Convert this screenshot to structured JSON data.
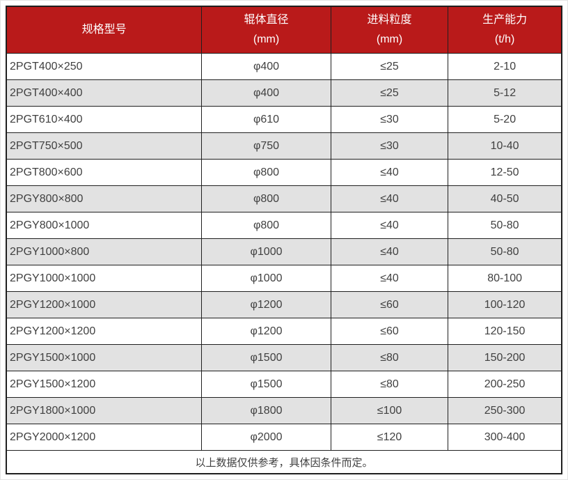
{
  "colors": {
    "header_bg": "#b91a1a",
    "header_text": "#ffffff",
    "row_bg": "#ffffff",
    "row_alt_bg": "#e2e2e2",
    "border": "#1f1f1f",
    "text": "#404040"
  },
  "table": {
    "columns": [
      {
        "title": "规格型号",
        "unit": ""
      },
      {
        "title": "辊体直径",
        "unit": "(mm)"
      },
      {
        "title": "进料粒度",
        "unit": "(mm)"
      },
      {
        "title": "生产能力",
        "unit": "(t/h)"
      }
    ],
    "rows": [
      [
        "2PGT400×250",
        "φ400",
        "≤25",
        "2-10"
      ],
      [
        "2PGT400×400",
        "φ400",
        "≤25",
        "5-12"
      ],
      [
        "2PGT610×400",
        "φ610",
        "≤30",
        "5-20"
      ],
      [
        "2PGT750×500",
        "φ750",
        "≤30",
        "10-40"
      ],
      [
        "2PGT800×600",
        "φ800",
        "≤40",
        "12-50"
      ],
      [
        "2PGY800×800",
        "φ800",
        "≤40",
        "40-50"
      ],
      [
        "2PGY800×1000",
        "φ800",
        "≤40",
        "50-80"
      ],
      [
        "2PGY1000×800",
        "φ1000",
        "≤40",
        "50-80"
      ],
      [
        "2PGY1000×1000",
        "φ1000",
        "≤40",
        "80-100"
      ],
      [
        "2PGY1200×1000",
        "φ1200",
        "≤60",
        "100-120"
      ],
      [
        "2PGY1200×1200",
        "φ1200",
        "≤60",
        "120-150"
      ],
      [
        "2PGY1500×1000",
        "φ1500",
        "≤80",
        "150-200"
      ],
      [
        "2PGY1500×1200",
        "φ1500",
        "≤80",
        "200-250"
      ],
      [
        "2PGY1800×1000",
        "φ1800",
        "≤100",
        "250-300"
      ],
      [
        "2PGY2000×1200",
        "φ2000",
        "≤120",
        "300-400"
      ]
    ],
    "footnote": "以上数据仅供参考，具体因条件而定。"
  }
}
